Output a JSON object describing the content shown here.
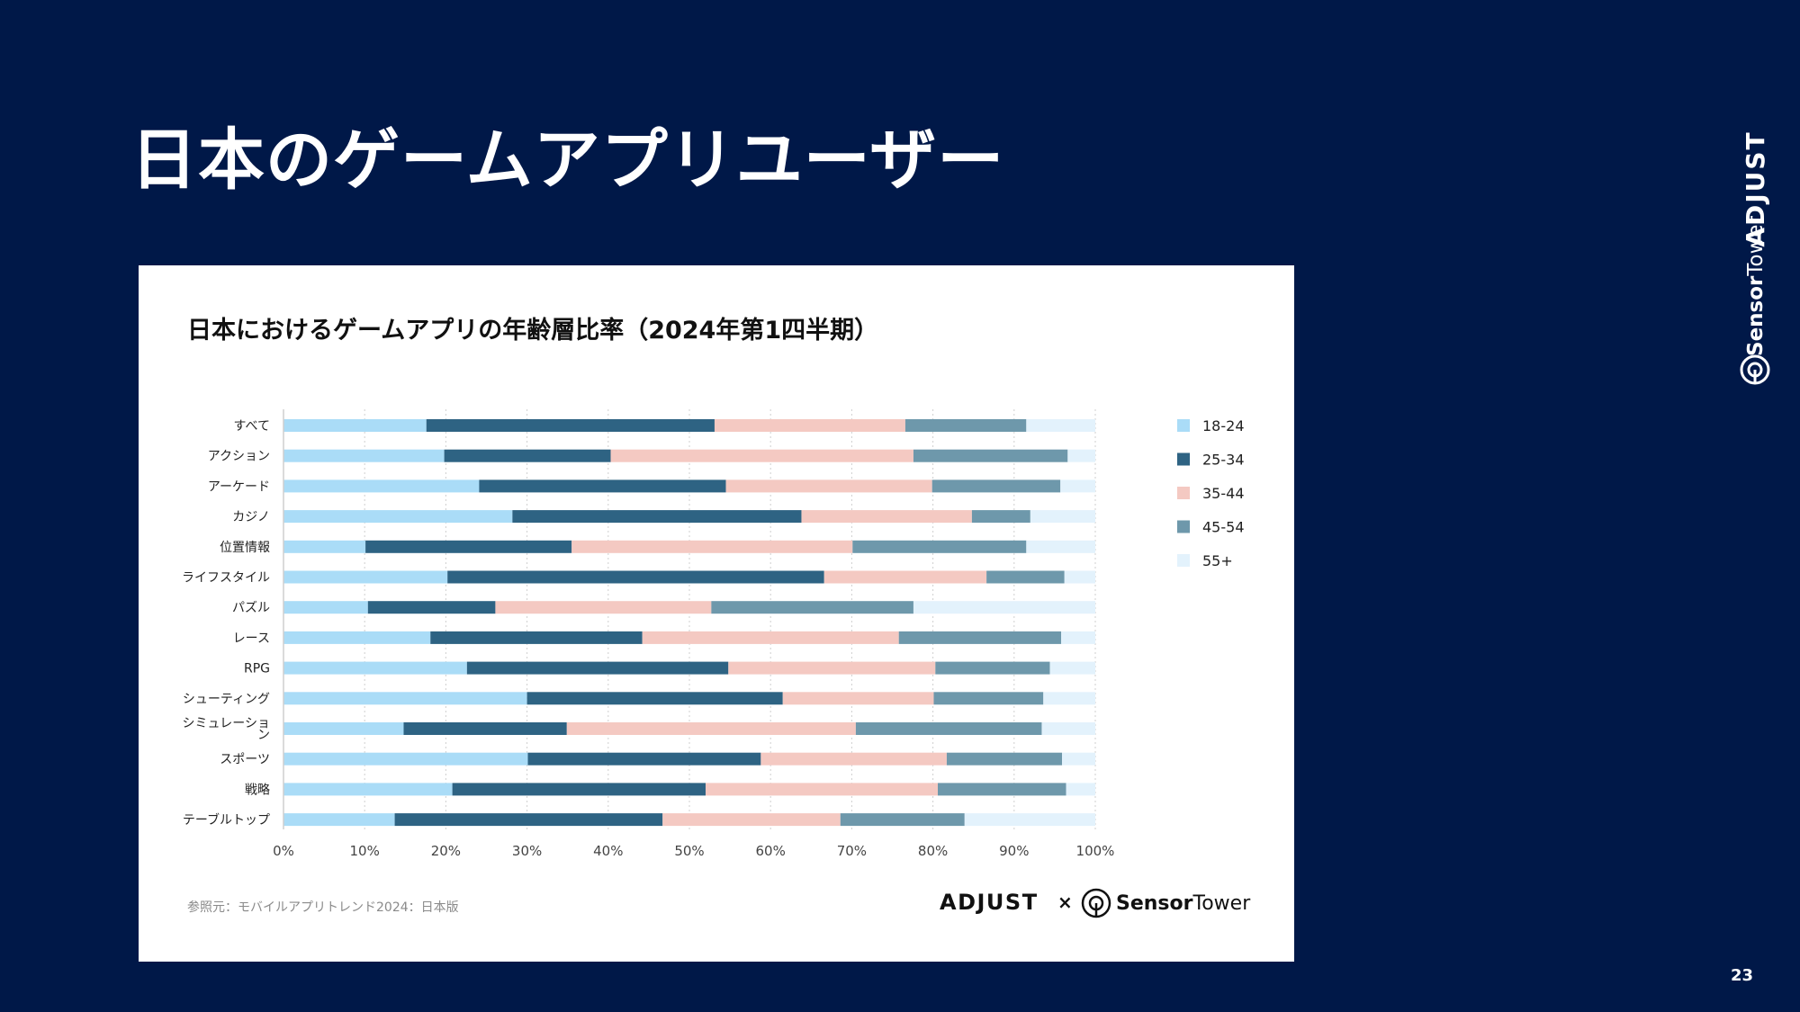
{
  "slide": {
    "title": "日本のゲームアプリユーザー",
    "page_number": "23",
    "brand_adjust": "ADJUST",
    "brand_sensor": "Sensor",
    "brand_tower": "Tower"
  },
  "card": {
    "source": "参照元：モバイルアプリトレンド2024：日本版",
    "logo_adjust": "ADJUST",
    "logo_x": "×",
    "logo_sensor": "Sensor",
    "logo_tower": "Tower"
  },
  "chart_data": {
    "type": "bar",
    "orientation": "horizontal",
    "stacked": true,
    "title": "日本におけるゲームアプリの年齢層比率（2024年第1四半期）",
    "categories": [
      "すべて",
      "アクション",
      "アーケード",
      "カジノ",
      "位置情報",
      "ライフスタイル",
      "パズル",
      "レース",
      "RPG",
      "シューティング",
      "シミュレーション",
      "スポーツ",
      "戦略",
      "テーブルトップ"
    ],
    "series": [
      {
        "name": "18-24",
        "color": "#aadcf7",
        "values": [
          17.6,
          19.8,
          24.1,
          28.2,
          10.1,
          20.2,
          10.4,
          18.1,
          22.6,
          30.0,
          14.8,
          30.1,
          20.8,
          13.7
        ]
      },
      {
        "name": "25-34",
        "color": "#2e6383",
        "values": [
          35.5,
          20.5,
          30.4,
          35.6,
          25.4,
          46.4,
          15.7,
          26.1,
          32.2,
          31.5,
          20.1,
          28.7,
          31.2,
          33.0
        ]
      },
      {
        "name": "35-44",
        "color": "#f4c9c2",
        "values": [
          23.5,
          37.3,
          25.4,
          21.0,
          34.6,
          20.0,
          26.6,
          31.6,
          25.5,
          18.6,
          35.6,
          22.9,
          28.6,
          21.9
        ]
      },
      {
        "name": "45-54",
        "color": "#6e98ab",
        "values": [
          14.9,
          19.0,
          15.8,
          7.2,
          21.4,
          9.6,
          24.9,
          20.0,
          14.1,
          13.5,
          22.9,
          14.2,
          15.8,
          15.3
        ]
      },
      {
        "name": "55+",
        "color": "#e3f2fc",
        "values": [
          8.5,
          3.4,
          4.3,
          8.0,
          8.5,
          3.8,
          22.4,
          4.2,
          5.6,
          6.4,
          6.6,
          4.1,
          3.6,
          16.1
        ]
      }
    ],
    "xlim": [
      0,
      100
    ],
    "xticks": [
      "0%",
      "10%",
      "20%",
      "30%",
      "40%",
      "50%",
      "60%",
      "70%",
      "80%",
      "90%",
      "100%"
    ],
    "grid": true,
    "legend_position": "right"
  }
}
